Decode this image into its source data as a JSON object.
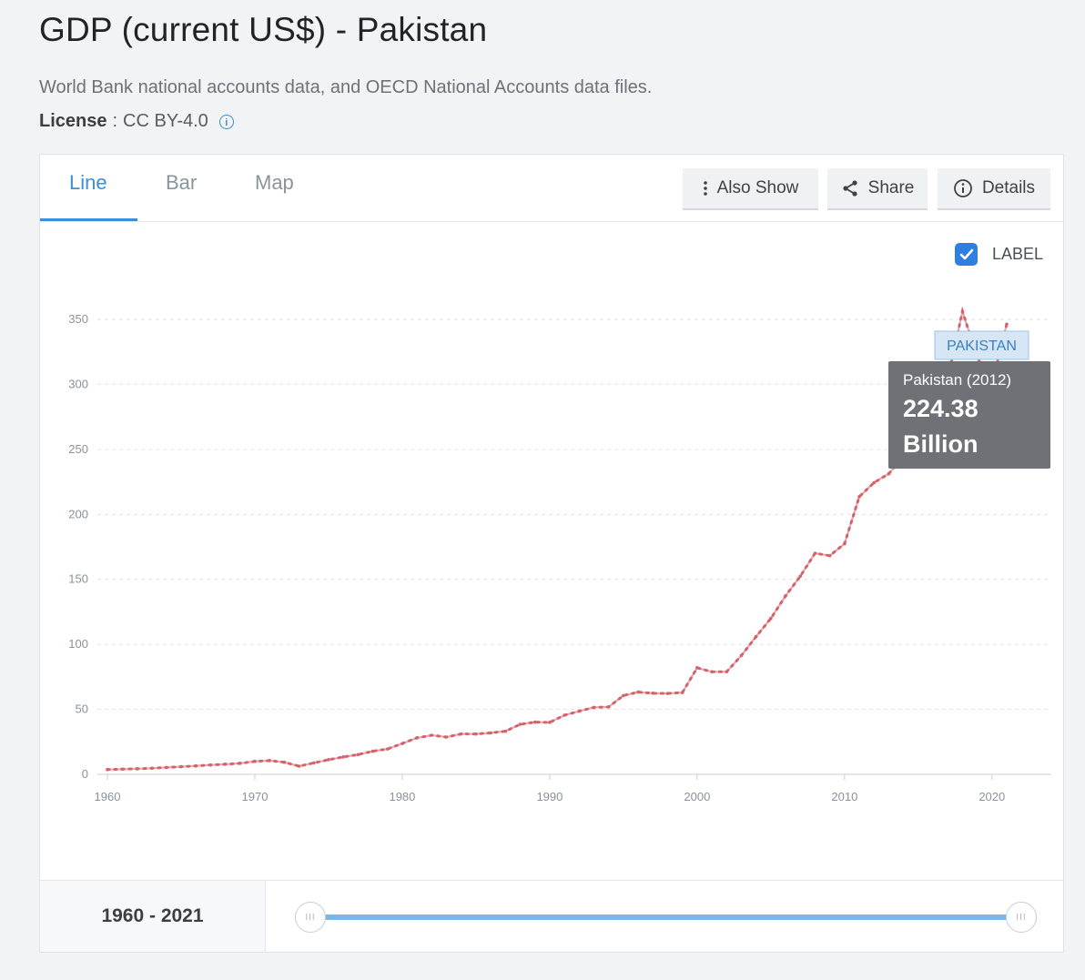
{
  "page": {
    "title": "GDP (current US$) - Pakistan",
    "source": "World Bank national accounts data, and OECD National Accounts data files.",
    "license_label": "License",
    "license_value": "CC BY-4.0",
    "info_icon": "info-icon"
  },
  "tabs": [
    {
      "label": "Line",
      "active": true
    },
    {
      "label": "Bar",
      "active": false
    },
    {
      "label": "Map",
      "active": false
    }
  ],
  "toolbar": {
    "also_show": "Also Show",
    "share": "Share",
    "details": "Details"
  },
  "label_toggle": {
    "label": "LABEL",
    "checked": true
  },
  "colors": {
    "accent": "#3b8fd6",
    "series": "#d6636b",
    "tooltip_bg": "#6e7175"
  },
  "tooltip": {
    "title": "Pakistan (2012)",
    "value": "224.38",
    "unit": "Billion"
  },
  "series_tag": "PAKISTAN",
  "chart_data": {
    "type": "line",
    "title": "GDP (current US$) - Pakistan",
    "xlabel": "",
    "ylabel": "",
    "xlim": [
      1960,
      2021
    ],
    "ylim": [
      0,
      350
    ],
    "yticks": [
      0,
      50,
      100,
      150,
      200,
      250,
      300,
      350
    ],
    "xticks": [
      1960,
      1970,
      1980,
      1990,
      2000,
      2010,
      2020
    ],
    "grid": true,
    "series": [
      {
        "name": "PAKISTAN",
        "x": [
          1960,
          1961,
          1962,
          1963,
          1964,
          1965,
          1966,
          1967,
          1968,
          1969,
          1970,
          1971,
          1972,
          1973,
          1974,
          1975,
          1976,
          1977,
          1978,
          1979,
          1980,
          1981,
          1982,
          1983,
          1984,
          1985,
          1986,
          1987,
          1988,
          1989,
          1990,
          1991,
          1992,
          1993,
          1994,
          1995,
          1996,
          1997,
          1998,
          1999,
          2000,
          2001,
          2002,
          2003,
          2004,
          2005,
          2006,
          2007,
          2008,
          2009,
          2010,
          2011,
          2012,
          2013,
          2014,
          2015,
          2016,
          2017,
          2018,
          2019,
          2020,
          2021
        ],
        "values": [
          3.7,
          4.0,
          4.3,
          4.7,
          5.3,
          5.9,
          6.5,
          7.2,
          7.8,
          8.5,
          10.0,
          10.6,
          9.3,
          6.3,
          8.8,
          11.3,
          13.4,
          15.2,
          17.8,
          19.5,
          23.7,
          28.1,
          30.1,
          28.7,
          31.1,
          31.1,
          31.9,
          33.2,
          38.5,
          40.2,
          40.0,
          45.5,
          48.6,
          51.5,
          51.9,
          60.6,
          63.3,
          62.4,
          62.2,
          62.9,
          82.0,
          78.9,
          78.9,
          91.4,
          106.0,
          120.0,
          137.3,
          152.4,
          170.1,
          168.2,
          177.4,
          213.6,
          224.4,
          231.2,
          244.4,
          270.6,
          278.7,
          304.6,
          356.1,
          321.0,
          300.4,
          346.3
        ]
      }
    ]
  },
  "range": {
    "label": "1960 - 2021"
  }
}
